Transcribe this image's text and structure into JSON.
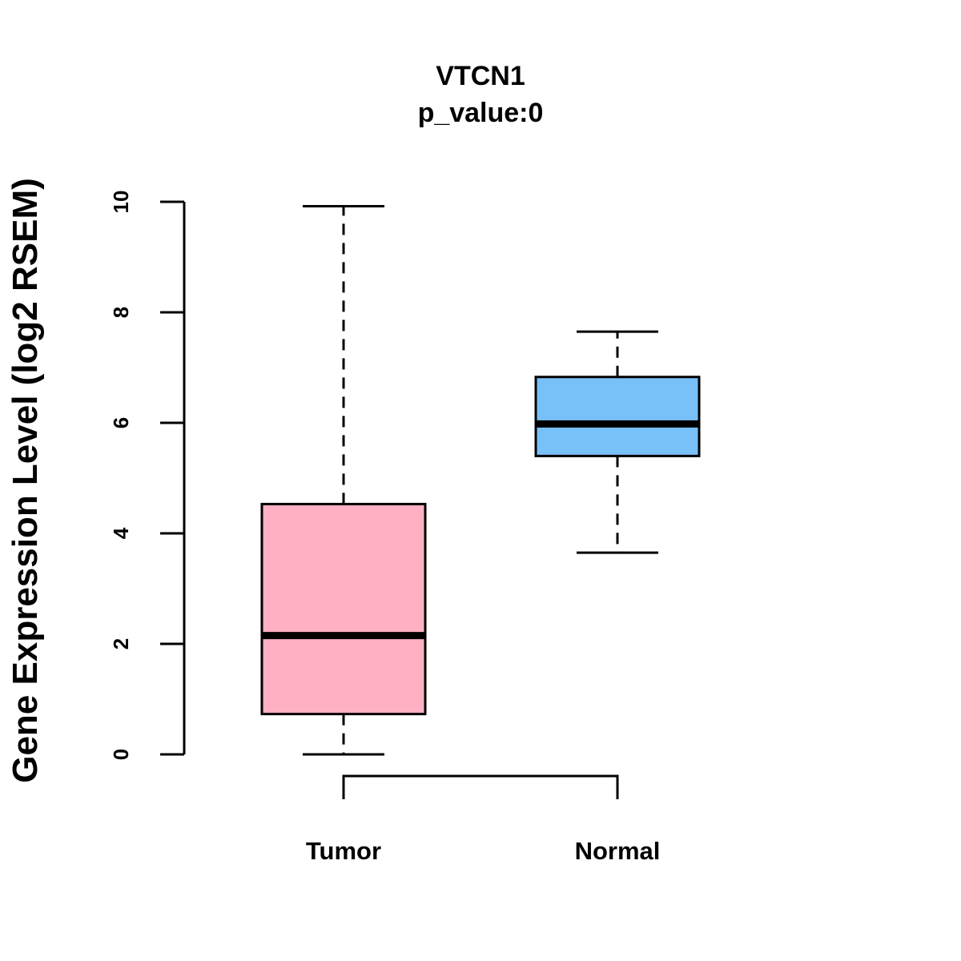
{
  "chart_data": {
    "type": "boxplot",
    "title": "VTCN1",
    "subtitle": "p_value:0",
    "xlabel": "",
    "ylabel": "Gene Expression Level (log2 RSEM)",
    "ylim": [
      0,
      10
    ],
    "yticks": [
      0,
      2,
      4,
      6,
      8,
      10
    ],
    "ytick_labels": [
      "0",
      "2",
      "4",
      "6",
      "8",
      "10"
    ],
    "categories": [
      "Tumor",
      "Normal"
    ],
    "boxes": [
      {
        "name": "Tumor",
        "min": 0.0,
        "q1": 0.73,
        "median": 2.15,
        "q3": 4.53,
        "max": 9.92,
        "color": "#FFB0C2"
      },
      {
        "name": "Normal",
        "min": 3.65,
        "q1": 5.4,
        "median": 5.98,
        "q3": 6.83,
        "max": 7.65,
        "color": "#78C0F8"
      }
    ],
    "bracket": {
      "from": "Tumor",
      "to": "Normal"
    },
    "grid": false,
    "legend": "none"
  }
}
